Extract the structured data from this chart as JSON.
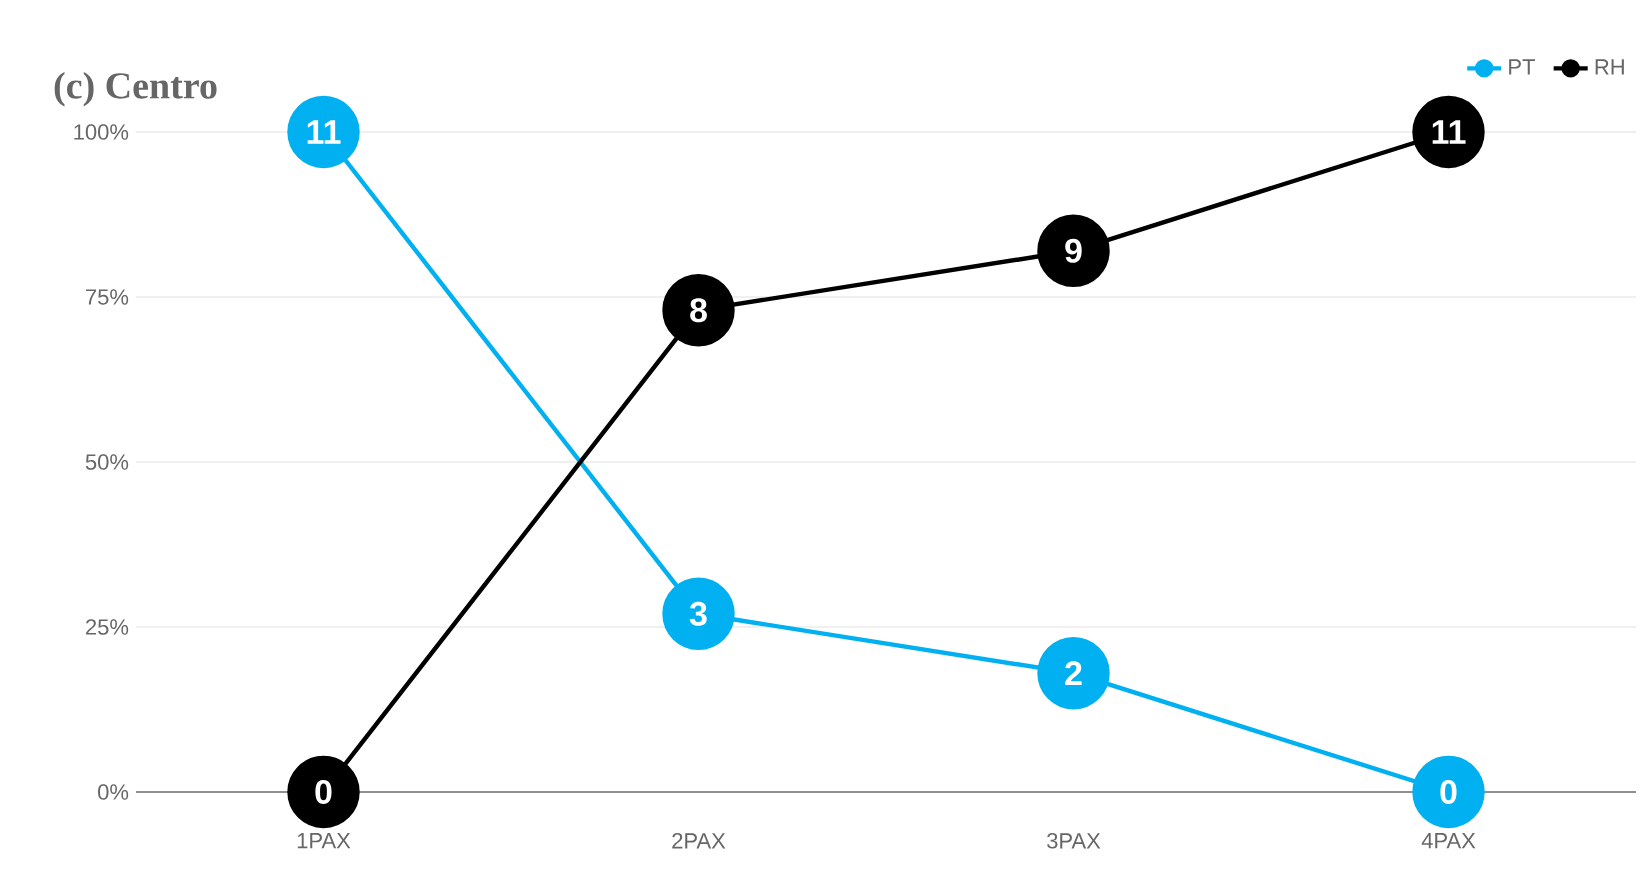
{
  "chart_data": {
    "type": "line",
    "title": "(c) Centro",
    "categories": [
      "1PAX",
      "2PAX",
      "3PAX",
      "4PAX"
    ],
    "series": [
      {
        "name": "PT",
        "color": "#00b0f0",
        "values": [
          100,
          27,
          18,
          0
        ]
      },
      {
        "name": "RH",
        "color": "#000000",
        "values": [
          0,
          73,
          82,
          100
        ]
      }
    ],
    "annotations": [
      {
        "text": "11",
        "x": "1PAX",
        "y": 100
      },
      {
        "text": "3",
        "x": "2PAX",
        "y": 27
      },
      {
        "text": "2",
        "x": "3PAX",
        "y": 18
      },
      {
        "text": "0",
        "x": "4PAX",
        "y": 0
      },
      {
        "text": "0",
        "x": "1PAX",
        "y": 0
      },
      {
        "text": "8",
        "x": "2PAX",
        "y": 73
      },
      {
        "text": "9",
        "x": "3PAX",
        "y": 82
      },
      {
        "text": "11",
        "x": "4PAX",
        "y": 100
      }
    ],
    "ylim": [
      0,
      100
    ],
    "yticks": [
      {
        "value": 0,
        "label": "0%"
      },
      {
        "value": 25,
        "label": "25%"
      },
      {
        "value": 50,
        "label": "50%"
      },
      {
        "value": 75,
        "label": "75%"
      },
      {
        "value": 100,
        "label": "100%"
      }
    ],
    "grid": "y",
    "legend": "top right",
    "marker": "circle",
    "line_style": "solid"
  }
}
